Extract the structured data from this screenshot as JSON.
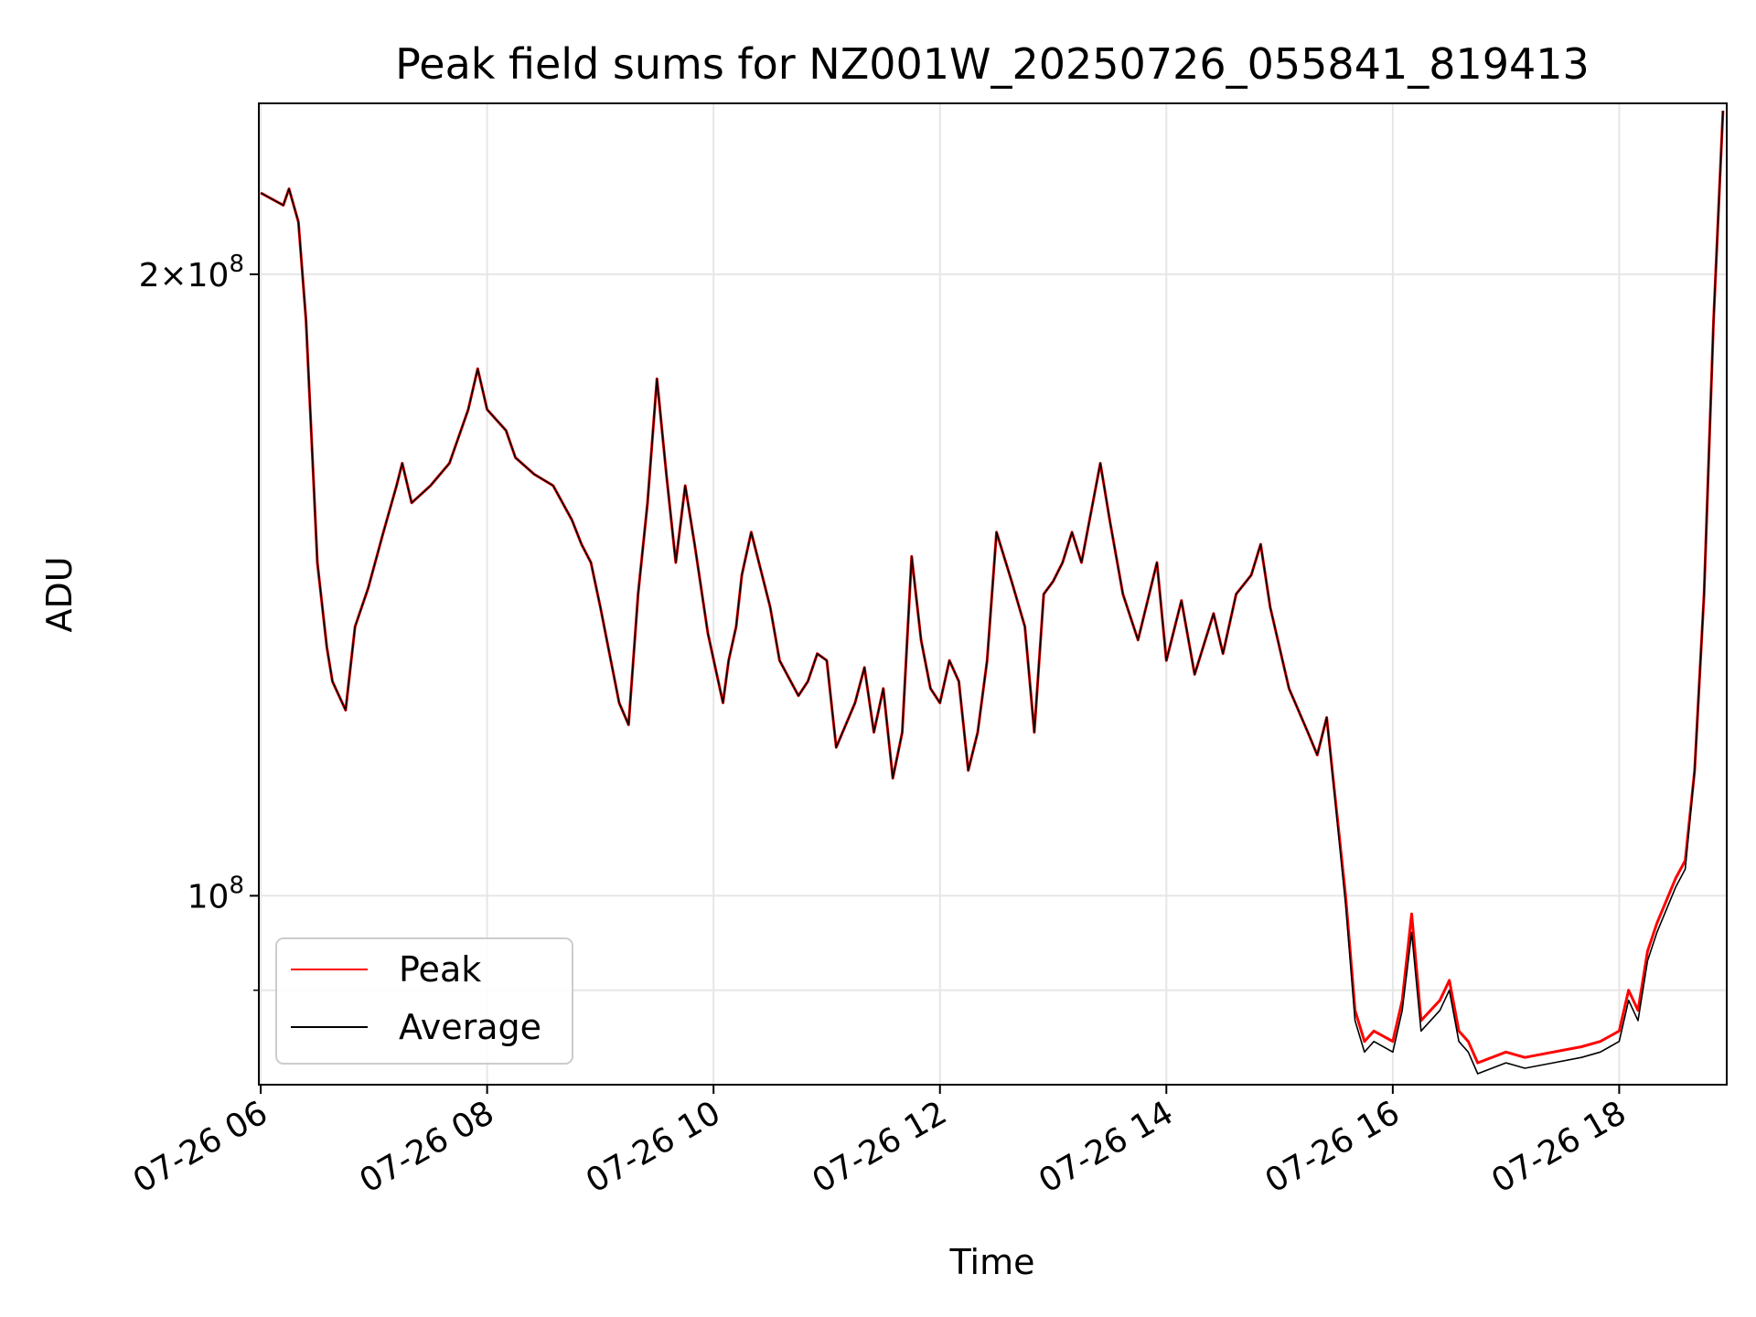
{
  "chart_data": {
    "type": "line",
    "title": "Peak field sums for NZ001W_20250726_055841_819413",
    "xlabel": "Time",
    "ylabel": "ADU",
    "yscale": "log",
    "grid": true,
    "legend": "lower-left",
    "xlim": [
      "2025-07-26 05:59",
      "2025-07-26 18:57"
    ],
    "ylim": [
      81000000,
      242000000
    ],
    "x_ticks": [
      "07-26 06",
      "07-26 08",
      "07-26 10",
      "07-26 12",
      "07-26 14",
      "07-26 16",
      "07-26 18"
    ],
    "y_ticks": [
      {
        "value": 100000000,
        "mantissa": "",
        "exponent": "8"
      },
      {
        "value": 200000000,
        "mantissa": "2×",
        "exponent": "8"
      }
    ],
    "y_minor_ticks": [
      90000000
    ],
    "x": [
      "06:00",
      "06:12",
      "06:15",
      "06:20",
      "06:24",
      "06:30",
      "06:35",
      "06:38",
      "06:45",
      "06:50",
      "06:57",
      "07:05",
      "07:12",
      "07:15",
      "07:20",
      "07:30",
      "07:40",
      "07:50",
      "07:55",
      "08:00",
      "08:10",
      "08:15",
      "08:25",
      "08:35",
      "08:45",
      "08:50",
      "08:55",
      "09:00",
      "09:10",
      "09:15",
      "09:20",
      "09:25",
      "09:30",
      "09:35",
      "09:40",
      "09:45",
      "09:50",
      "09:57",
      "10:05",
      "10:08",
      "10:12",
      "10:15",
      "10:20",
      "10:30",
      "10:35",
      "10:45",
      "10:50",
      "10:55",
      "11:00",
      "11:05",
      "11:15",
      "11:20",
      "11:25",
      "11:30",
      "11:35",
      "11:40",
      "11:45",
      "11:50",
      "11:55",
      "12:00",
      "12:05",
      "12:10",
      "12:15",
      "12:20",
      "12:25",
      "12:30",
      "12:38",
      "12:45",
      "12:50",
      "12:55",
      "13:00",
      "13:05",
      "13:10",
      "13:15",
      "13:25",
      "13:30",
      "13:37",
      "13:45",
      "13:55",
      "14:00",
      "14:08",
      "14:15",
      "14:25",
      "14:30",
      "14:37",
      "14:45",
      "14:50",
      "14:55",
      "15:05",
      "15:15",
      "15:20",
      "15:25",
      "15:35",
      "15:40",
      "15:45",
      "15:50",
      "16:00",
      "16:05",
      "16:10",
      "16:15",
      "16:25",
      "16:30",
      "16:35",
      "16:40",
      "16:45",
      "17:00",
      "17:10",
      "17:25",
      "17:40",
      "17:50",
      "17:55",
      "18:00",
      "18:05",
      "18:10",
      "18:15",
      "18:20",
      "18:30",
      "18:35",
      "18:40",
      "18:45",
      "18:50",
      "18:55"
    ],
    "series": [
      {
        "name": "Peak",
        "color": "#ff0000",
        "values": [
          219000000,
          216000000,
          220000000,
          212000000,
          190000000,
          145000000,
          132000000,
          127000000,
          123000000,
          135000000,
          141000000,
          150000000,
          158000000,
          162000000,
          155000000,
          158000000,
          162000000,
          172000000,
          180000000,
          172000000,
          168000000,
          163000000,
          160000000,
          158000000,
          152000000,
          148000000,
          145000000,
          138000000,
          124000000,
          121000000,
          140000000,
          155000000,
          178000000,
          160000000,
          145000000,
          158000000,
          148000000,
          134000000,
          124000000,
          130000000,
          135000000,
          143000000,
          150000000,
          138000000,
          130000000,
          125000000,
          127000000,
          131000000,
          130000000,
          118000000,
          124000000,
          129000000,
          120000000,
          126000000,
          114000000,
          120000000,
          146000000,
          133000000,
          126000000,
          124000000,
          130000000,
          127000000,
          115000000,
          120000000,
          130000000,
          150000000,
          142000000,
          135000000,
          120000000,
          140000000,
          142000000,
          145000000,
          150000000,
          145000000,
          162000000,
          152000000,
          140000000,
          133000000,
          145000000,
          130000000,
          139000000,
          128000000,
          137000000,
          131000000,
          140000000,
          143000000,
          148000000,
          138000000,
          126000000,
          120000000,
          117000000,
          122000000,
          100000000,
          88000000,
          85000000,
          86000000,
          85000000,
          89000000,
          98000000,
          87000000,
          89000000,
          91000000,
          86000000,
          85000000,
          83000000,
          84000000,
          83500000,
          84000000,
          84500000,
          85000000,
          85500000,
          86000000,
          90000000,
          88000000,
          94000000,
          97000000,
          102000000,
          104000000,
          115000000,
          140000000,
          190000000,
          240000000
        ]
      },
      {
        "name": "Average",
        "color": "#000000",
        "values": [
          219000000,
          216000000,
          220000000,
          212000000,
          190000000,
          145000000,
          132000000,
          127000000,
          123000000,
          135000000,
          141000000,
          150000000,
          158000000,
          162000000,
          155000000,
          158000000,
          162000000,
          172000000,
          180000000,
          172000000,
          168000000,
          163000000,
          160000000,
          158000000,
          152000000,
          148000000,
          145000000,
          138000000,
          124000000,
          121000000,
          140000000,
          155000000,
          178000000,
          160000000,
          145000000,
          158000000,
          148000000,
          134000000,
          124000000,
          130000000,
          135000000,
          143000000,
          150000000,
          138000000,
          130000000,
          125000000,
          127000000,
          131000000,
          130000000,
          118000000,
          124000000,
          129000000,
          120000000,
          126000000,
          114000000,
          120000000,
          146000000,
          133000000,
          126000000,
          124000000,
          130000000,
          127000000,
          115000000,
          120000000,
          130000000,
          150000000,
          142000000,
          135000000,
          120000000,
          140000000,
          142000000,
          145000000,
          150000000,
          145000000,
          162000000,
          152000000,
          140000000,
          133000000,
          145000000,
          130000000,
          139000000,
          128000000,
          137000000,
          131000000,
          140000000,
          143000000,
          148000000,
          138000000,
          126000000,
          120000000,
          117000000,
          122000000,
          99000000,
          87000000,
          84000000,
          85000000,
          84000000,
          88000000,
          96000000,
          86000000,
          88000000,
          90000000,
          85000000,
          84000000,
          82000000,
          83000000,
          82500000,
          83000000,
          83500000,
          84000000,
          84500000,
          85000000,
          89000000,
          87000000,
          93000000,
          96000000,
          101000000,
          103000000,
          115000000,
          140000000,
          190000000,
          240000000
        ]
      }
    ]
  }
}
